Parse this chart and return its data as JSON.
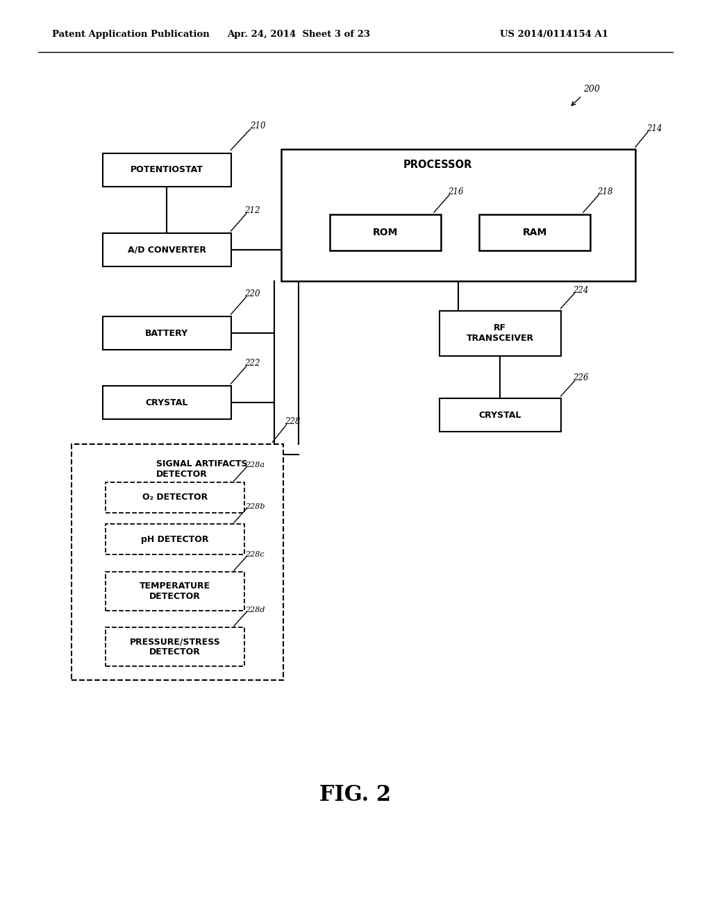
{
  "header_left": "Patent Application Publication",
  "header_mid": "Apr. 24, 2014  Sheet 3 of 23",
  "header_right": "US 2014/0114154 A1",
  "fig_label": "FIG. 2",
  "background_color": "#ffffff"
}
